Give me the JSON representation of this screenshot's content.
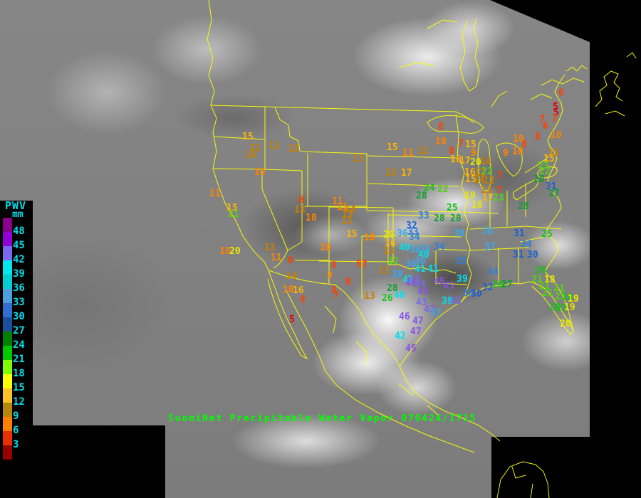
{
  "legend": {
    "title": "PWV",
    "unit": "mm",
    "label_color": "#00dde8",
    "labels": [
      "48",
      "45",
      "42",
      "39",
      "36",
      "33",
      "30",
      "27",
      "24",
      "21",
      "18",
      "15",
      "12",
      "9",
      "6",
      "3"
    ],
    "swatch_colors": [
      "#8b008b",
      "#9400d3",
      "#7b68ee",
      "#00e5ee",
      "#00ced1",
      "#4f9fe0",
      "#2e6fd0",
      "#1a4f9e",
      "#008000",
      "#00c800",
      "#7fff00",
      "#ffff00",
      "#ffc125",
      "#b8860b",
      "#ff7f00",
      "#e83000",
      "#990000"
    ]
  },
  "caption": {
    "text": "SuomiNet Precipitable Water Vapor 070424/1715",
    "color": "#00ff00"
  },
  "map": {
    "outline_color": "#ffff00"
  },
  "value_color_bins": [
    [
      45,
      "#8a52e8"
    ],
    [
      43,
      "#7b68ee"
    ],
    [
      39,
      "#00e0ee"
    ],
    [
      36,
      "#38aaf0"
    ],
    [
      33,
      "#2e7fe0"
    ],
    [
      30,
      "#1e5fce"
    ],
    [
      27,
      "#0f9d30"
    ],
    [
      24,
      "#15c515"
    ],
    [
      21,
      "#52d413"
    ],
    [
      18,
      "#e8e800"
    ],
    [
      15,
      "#ffb400"
    ],
    [
      12,
      "#c77f00"
    ],
    [
      9,
      "#ff8300"
    ],
    [
      6,
      "#ff4000"
    ],
    [
      3,
      "#e30000"
    ],
    [
      0,
      "#a00000"
    ]
  ],
  "stations": [
    [
      15,
      342,
      192
    ],
    [
      12,
      352,
      208
    ],
    [
      13,
      379,
      205
    ],
    [
      12,
      406,
      209
    ],
    [
      14,
      346,
      218
    ],
    [
      10,
      359,
      242
    ],
    [
      13,
      497,
      223
    ],
    [
      11,
      296,
      272
    ],
    [
      15,
      320,
      292
    ],
    [
      21,
      322,
      301
    ],
    [
      10,
      310,
      353
    ],
    [
      20,
      324,
      353
    ],
    [
      13,
      373,
      348
    ],
    [
      11,
      382,
      362
    ],
    [
      6,
      406,
      366
    ],
    [
      14,
      403,
      388
    ],
    [
      10,
      399,
      407
    ],
    [
      16,
      413,
      408
    ],
    [
      8,
      423,
      421
    ],
    [
      5,
      408,
      449
    ],
    [
      8,
      421,
      281
    ],
    [
      13,
      415,
      295
    ],
    [
      10,
      431,
      306
    ],
    [
      11,
      468,
      283
    ],
    [
      11,
      475,
      291
    ],
    [
      14,
      486,
      294
    ],
    [
      13,
      482,
      301
    ],
    [
      13,
      481,
      311
    ],
    [
      10,
      451,
      348
    ],
    [
      15,
      488,
      329
    ],
    [
      10,
      513,
      334
    ],
    [
      8,
      467,
      373
    ],
    [
      9,
      461,
      387
    ],
    [
      8,
      502,
      371
    ],
    [
      7,
      510,
      372
    ],
    [
      8,
      487,
      396
    ],
    [
      8,
      467,
      408
    ],
    [
      7,
      470,
      415
    ],
    [
      13,
      533,
      380
    ],
    [
      13,
      513,
      416
    ],
    [
      15,
      545,
      207
    ],
    [
      11,
      567,
      215
    ],
    [
      12,
      588,
      212
    ],
    [
      13,
      543,
      243
    ],
    [
      17,
      565,
      243
    ],
    [
      8,
      617,
      178
    ],
    [
      10,
      613,
      199
    ],
    [
      8,
      632,
      212
    ],
    [
      7,
      645,
      202
    ],
    [
      15,
      655,
      203
    ],
    [
      9,
      663,
      215
    ],
    [
      16,
      634,
      224
    ],
    [
      17,
      647,
      226
    ],
    [
      20,
      662,
      228
    ],
    [
      14,
      676,
      227
    ],
    [
      16,
      654,
      242
    ],
    [
      12,
      668,
      243
    ],
    [
      22,
      678,
      241
    ],
    [
      15,
      655,
      252
    ],
    [
      14,
      667,
      253
    ],
    [
      12,
      681,
      254
    ],
    [
      7,
      700,
      247
    ],
    [
      13,
      677,
      267
    ],
    [
      7,
      699,
      268
    ],
    [
      19,
      654,
      275
    ],
    [
      17,
      679,
      278
    ],
    [
      23,
      694,
      278
    ],
    [
      18,
      664,
      288
    ],
    [
      25,
      629,
      292
    ],
    [
      24,
      597,
      264
    ],
    [
      22,
      616,
      266
    ],
    [
      28,
      586,
      275
    ],
    [
      33,
      589,
      303
    ],
    [
      28,
      611,
      307
    ],
    [
      28,
      634,
      307
    ],
    [
      28,
      729,
      290
    ],
    [
      9,
      708,
      215
    ],
    [
      10,
      721,
      213
    ],
    [
      10,
      722,
      195
    ],
    [
      8,
      734,
      203
    ],
    [
      6,
      786,
      130
    ],
    [
      5,
      778,
      150
    ],
    [
      5,
      779,
      158
    ],
    [
      7,
      777,
      167
    ],
    [
      7,
      759,
      168
    ],
    [
      6,
      764,
      177
    ],
    [
      8,
      753,
      192
    ],
    [
      10,
      775,
      190
    ],
    [
      13,
      771,
      215
    ],
    [
      15,
      765,
      223
    ],
    [
      23,
      757,
      233
    ],
    [
      22,
      759,
      241
    ],
    [
      28,
      751,
      252
    ],
    [
      31,
      768,
      262
    ],
    [
      27,
      772,
      272
    ],
    [
      31,
      723,
      328
    ],
    [
      25,
      762,
      329
    ],
    [
      34,
      733,
      343
    ],
    [
      31,
      722,
      358
    ],
    [
      30,
      742,
      358
    ],
    [
      32,
      572,
      317
    ],
    [
      33,
      574,
      326
    ],
    [
      36,
      559,
      328
    ],
    [
      34,
      576,
      333
    ],
    [
      34,
      611,
      347
    ],
    [
      38,
      639,
      328
    ],
    [
      38,
      679,
      325
    ],
    [
      37,
      682,
      347
    ],
    [
      35,
      642,
      367
    ],
    [
      20,
      540,
      330
    ],
    [
      16,
      542,
      342
    ],
    [
      13,
      540,
      353
    ],
    [
      22,
      546,
      367
    ],
    [
      40,
      562,
      348
    ],
    [
      36,
      577,
      351
    ],
    [
      38,
      591,
      350
    ],
    [
      40,
      589,
      358
    ],
    [
      36,
      571,
      371
    ],
    [
      38,
      584,
      367
    ],
    [
      41,
      584,
      378
    ],
    [
      41,
      602,
      378
    ],
    [
      38,
      552,
      386
    ],
    [
      42,
      567,
      393
    ],
    [
      43,
      576,
      393
    ],
    [
      46,
      571,
      398
    ],
    [
      44,
      584,
      399
    ],
    [
      45,
      588,
      410
    ],
    [
      45,
      611,
      396
    ],
    [
      45,
      624,
      402
    ],
    [
      39,
      643,
      392
    ],
    [
      40,
      555,
      415
    ],
    [
      28,
      545,
      405
    ],
    [
      26,
      538,
      419
    ],
    [
      46,
      562,
      445
    ],
    [
      43,
      586,
      425
    ],
    [
      43,
      597,
      435
    ],
    [
      37,
      606,
      440
    ],
    [
      39,
      622,
      423
    ],
    [
      43,
      634,
      423
    ],
    [
      47,
      581,
      451
    ],
    [
      47,
      578,
      466
    ],
    [
      42,
      556,
      472
    ],
    [
      45,
      571,
      490
    ],
    [
      33,
      651,
      412
    ],
    [
      30,
      663,
      413
    ],
    [
      32,
      679,
      404
    ],
    [
      26,
      693,
      400
    ],
    [
      27,
      706,
      400
    ],
    [
      34,
      686,
      382
    ],
    [
      26,
      753,
      380
    ],
    [
      21,
      748,
      393
    ],
    [
      18,
      766,
      393
    ],
    [
      21,
      758,
      402
    ],
    [
      21,
      779,
      405
    ],
    [
      21,
      763,
      412
    ],
    [
      23,
      781,
      417
    ],
    [
      24,
      791,
      418
    ],
    [
      19,
      799,
      420
    ],
    [
      26,
      773,
      432
    ],
    [
      25,
      783,
      433
    ],
    [
      19,
      794,
      432
    ],
    [
      20,
      788,
      455
    ]
  ]
}
